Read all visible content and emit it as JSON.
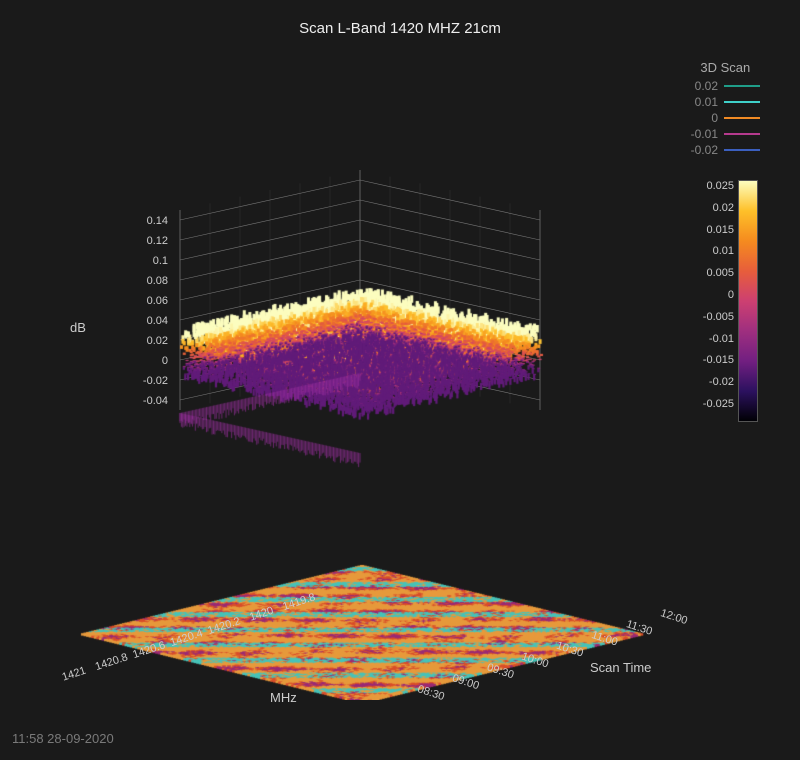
{
  "title": "Scan L-Band 1420 MHZ 21cm",
  "timestamp": "11:58   28-09-2020",
  "background_color": "#1a1a1a",
  "text_color": "#dddddd",
  "chart": {
    "type": "3d-surface",
    "projection": "isometric",
    "z_axis": {
      "label": "dB",
      "ticks": [
        -0.04,
        -0.02,
        0,
        0.02,
        0.04,
        0.06,
        0.08,
        0.1,
        0.12,
        0.14
      ],
      "lim": [
        -0.05,
        0.15
      ],
      "label_fontsize": 13,
      "tick_fontsize": 11,
      "grid_color": "#777777"
    },
    "x_axis": {
      "label": "MHz",
      "ticks": [
        1419.8,
        1420,
        1420.2,
        1420.4,
        1420.6,
        1420.8,
        1421
      ],
      "lim": [
        1419.8,
        1421.0
      ],
      "label_fontsize": 13,
      "tick_fontsize": 11
    },
    "y_axis": {
      "label": "Scan Time",
      "ticks": [
        "08:30",
        "09:00",
        "09:30",
        "10:00",
        "10:30",
        "11:00",
        "11:30",
        "12:00"
      ],
      "label_fontsize": 13,
      "tick_fontsize": 11
    },
    "surface": {
      "mean_db": 0.01,
      "noise_amplitude": 0.025,
      "palette_name": "magma-like",
      "palette_stops": [
        {
          "t": 0.0,
          "c": "#000004"
        },
        {
          "t": 0.12,
          "c": "#2c115f"
        },
        {
          "t": 0.25,
          "c": "#721f81"
        },
        {
          "t": 0.38,
          "c": "#9f2f7f"
        },
        {
          "t": 0.5,
          "c": "#cd4071"
        },
        {
          "t": 0.62,
          "c": "#e75e3b"
        },
        {
          "t": 0.75,
          "c": "#f58b1f"
        },
        {
          "t": 0.88,
          "c": "#fec029"
        },
        {
          "t": 1.0,
          "c": "#fcfdbf"
        }
      ]
    },
    "floor_contour": {
      "base_color": "#e79a3c",
      "accent_colors": [
        "#d94e2a",
        "#9b2a74",
        "#47c3b8"
      ],
      "band_count": 3
    }
  },
  "legend": {
    "title": "3D Scan",
    "items": [
      {
        "label": "0.02",
        "color": "#1f9e89"
      },
      {
        "label": "0.01",
        "color": "#3fd0c9"
      },
      {
        "label": "0",
        "color": "#f08a24"
      },
      {
        "label": "-0.01",
        "color": "#b63a8e"
      },
      {
        "label": "-0.02",
        "color": "#3b5fbf"
      }
    ]
  },
  "colorbar": {
    "ticks": [
      0.025,
      0.02,
      0.015,
      0.01,
      0.005,
      0,
      -0.005,
      -0.01,
      -0.015,
      -0.02,
      -0.025
    ],
    "gradient": [
      "#fcfdbf",
      "#fec029",
      "#f58b1f",
      "#e75e3b",
      "#cd4071",
      "#9f2f7f",
      "#721f81",
      "#2c115f",
      "#000004"
    ]
  }
}
